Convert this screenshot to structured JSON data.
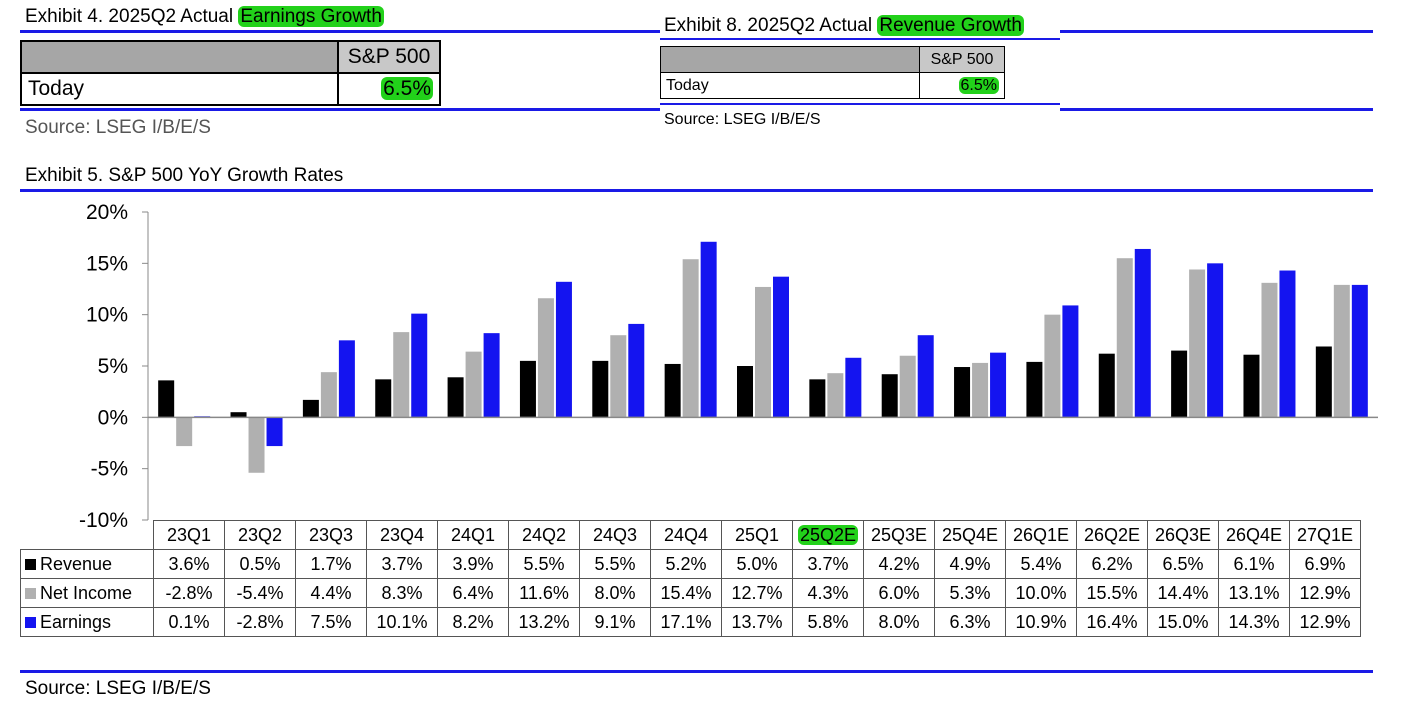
{
  "exhibit4": {
    "title_prefix": "Exhibit 4.  2025Q2 Actual ",
    "title_highlight": "Earnings Growth",
    "column_header": "S&P 500",
    "row_label": "Today",
    "value": "6.5%",
    "source": "Source: LSEG I/B/E/S"
  },
  "exhibit8": {
    "title_prefix": "Exhibit 8.  2025Q2 Actual ",
    "title_highlight": "Revenue Growth",
    "column_header": "S&P 500",
    "row_label": "Today",
    "value": "6.5%",
    "source": "Source: LSEG I/B/E/S"
  },
  "exhibit5": {
    "title": "Exhibit 5.  S&P 500 YoY Growth Rates",
    "source": "Source: LSEG I/B/E/S",
    "highlighted_category": "25Q2E"
  },
  "colors": {
    "revenue": "#000000",
    "net_income": "#b0b0b0",
    "earnings": "#1414f0",
    "highlight": "#22d11a",
    "rule": "#1a1ae6"
  },
  "chart_data": {
    "type": "bar",
    "title": "Exhibit 5.  S&P 500 YoY Growth Rates",
    "xlabel": "",
    "ylabel": "",
    "ylim": [
      -10,
      20
    ],
    "yticks": [
      20,
      15,
      10,
      5,
      0,
      -5,
      -10
    ],
    "ytick_labels": [
      "20%",
      "15%",
      "10%",
      "5%",
      "0%",
      "-5%",
      "-10%"
    ],
    "categories": [
      "23Q1",
      "23Q2",
      "23Q3",
      "23Q4",
      "24Q1",
      "24Q2",
      "24Q3",
      "24Q4",
      "25Q1",
      "25Q2E",
      "25Q3E",
      "25Q4E",
      "26Q1E",
      "26Q2E",
      "26Q3E",
      "26Q4E",
      "27Q1E"
    ],
    "series": [
      {
        "name": "Revenue",
        "key": "revenue",
        "values": [
          3.6,
          0.5,
          1.7,
          3.7,
          3.9,
          5.5,
          5.5,
          5.2,
          5.0,
          3.7,
          4.2,
          4.9,
          5.4,
          6.2,
          6.5,
          6.1,
          6.9
        ],
        "labels": [
          "3.6%",
          "0.5%",
          "1.7%",
          "3.7%",
          "3.9%",
          "5.5%",
          "5.5%",
          "5.2%",
          "5.0%",
          "3.7%",
          "4.2%",
          "4.9%",
          "5.4%",
          "6.2%",
          "6.5%",
          "6.1%",
          "6.9%"
        ]
      },
      {
        "name": "Net Income",
        "key": "net_income",
        "values": [
          -2.8,
          -5.4,
          4.4,
          8.3,
          6.4,
          11.6,
          8.0,
          15.4,
          12.7,
          4.3,
          6.0,
          5.3,
          10.0,
          15.5,
          14.4,
          13.1,
          12.9
        ],
        "labels": [
          "-2.8%",
          "-5.4%",
          "4.4%",
          "8.3%",
          "6.4%",
          "11.6%",
          "8.0%",
          "15.4%",
          "12.7%",
          "4.3%",
          "6.0%",
          "5.3%",
          "10.0%",
          "15.5%",
          "14.4%",
          "13.1%",
          "12.9%"
        ]
      },
      {
        "name": "Earnings",
        "key": "earnings",
        "values": [
          0.1,
          -2.8,
          7.5,
          10.1,
          8.2,
          13.2,
          9.1,
          17.1,
          13.7,
          5.8,
          8.0,
          6.3,
          10.9,
          16.4,
          15.0,
          14.3,
          12.9
        ],
        "labels": [
          "0.1%",
          "-2.8%",
          "7.5%",
          "10.1%",
          "8.2%",
          "13.2%",
          "9.1%",
          "17.1%",
          "13.7%",
          "5.8%",
          "8.0%",
          "6.3%",
          "10.9%",
          "16.4%",
          "15.0%",
          "14.3%",
          "12.9%"
        ]
      }
    ]
  }
}
